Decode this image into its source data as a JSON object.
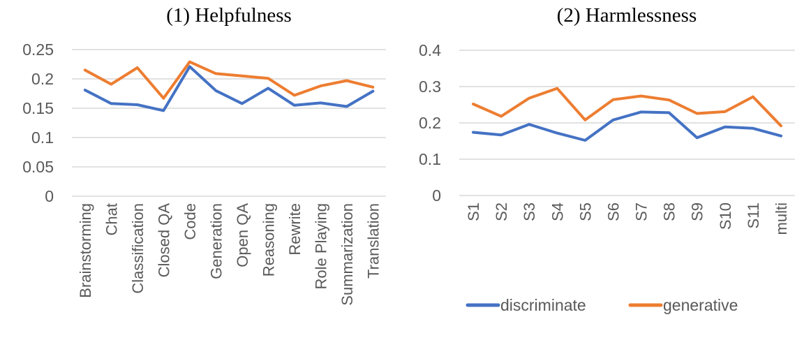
{
  "figure": {
    "background": "#ffffff"
  },
  "colors": {
    "discriminate": "#4472C4",
    "generative": "#ED7D31",
    "axis_text": "#595959",
    "gridline": "#D9D9D9",
    "title_text": "#000000"
  },
  "legend": {
    "position": "bottom-right",
    "items": [
      {
        "label": "discriminate",
        "color": "#4472C4"
      },
      {
        "label": "generative",
        "color": "#ED7D31"
      }
    ]
  },
  "chart_data": [
    {
      "type": "line",
      "title": "(1) Helpfulness",
      "categories": [
        "Brainstorming",
        "Chat",
        "Classification",
        "Closed QA",
        "Code",
        "Generation",
        "Open QA",
        "Reasoning",
        "Rewrite",
        "Role Playing",
        "Summarization",
        "Translation"
      ],
      "series": [
        {
          "name": "discriminate",
          "color": "#4472C4",
          "values": [
            0.181,
            0.158,
            0.156,
            0.146,
            0.221,
            0.18,
            0.158,
            0.184,
            0.155,
            0.159,
            0.153,
            0.179
          ]
        },
        {
          "name": "generative",
          "color": "#ED7D31",
          "values": [
            0.215,
            0.191,
            0.219,
            0.167,
            0.229,
            0.209,
            0.205,
            0.201,
            0.172,
            0.188,
            0.197,
            0.186
          ]
        }
      ],
      "ylim": [
        0,
        0.25
      ],
      "yticks": [
        0,
        0.05,
        0.1,
        0.15,
        0.2,
        0.25
      ],
      "ytick_labels": [
        "0",
        "0.05",
        "0.1",
        "0.15",
        "0.2",
        "0.25"
      ],
      "xlabel": "",
      "ylabel": "",
      "grid": true,
      "x_label_rotation": -90
    },
    {
      "type": "line",
      "title": "(2) Harmlessness",
      "categories": [
        "S1",
        "S2",
        "S3",
        "S4",
        "S5",
        "S6",
        "S7",
        "S8",
        "S9",
        "S10",
        "S11",
        "multi"
      ],
      "series": [
        {
          "name": "discriminate",
          "color": "#4472C4",
          "values": [
            0.174,
            0.167,
            0.196,
            0.172,
            0.152,
            0.208,
            0.23,
            0.228,
            0.159,
            0.189,
            0.185,
            0.164
          ]
        },
        {
          "name": "generative",
          "color": "#ED7D31",
          "values": [
            0.252,
            0.218,
            0.268,
            0.295,
            0.208,
            0.264,
            0.274,
            0.263,
            0.226,
            0.231,
            0.272,
            0.192
          ]
        }
      ],
      "ylim": [
        0,
        0.4
      ],
      "yticks": [
        0,
        0.1,
        0.2,
        0.3,
        0.4
      ],
      "ytick_labels": [
        "0",
        "0.1",
        "0.2",
        "0.3",
        "0.4"
      ],
      "xlabel": "",
      "ylabel": "",
      "grid": true,
      "x_label_rotation": -90
    }
  ]
}
